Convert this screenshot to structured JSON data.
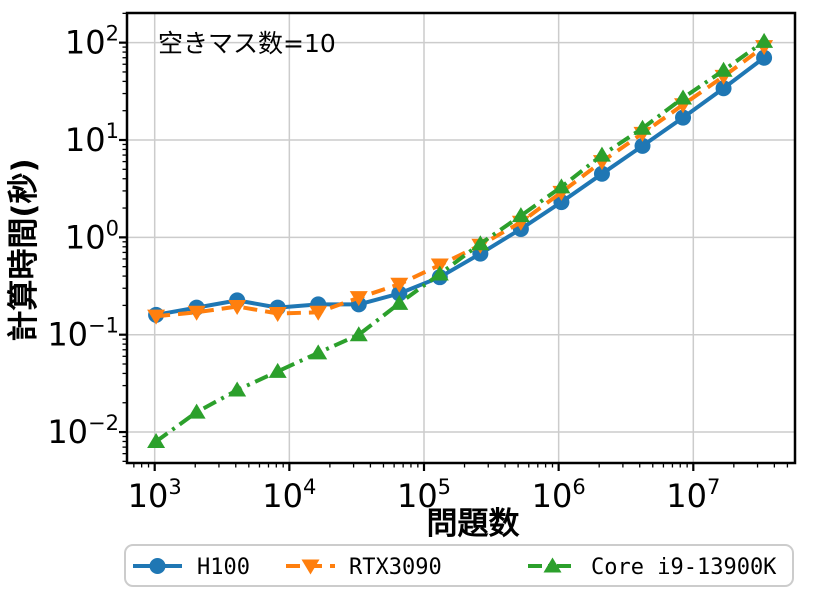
{
  "figure": {
    "background": "#ffffff",
    "annotation": "空きマス数=10"
  },
  "chart_data": {
    "type": "line",
    "title": "",
    "annotation": "空きマス数=10",
    "xlabel": "問題数",
    "ylabel": "計算時間(秒)",
    "x_scale": "log",
    "y_scale": "log",
    "grid": true,
    "legend_position": "bottom-outside",
    "xlim": [
      620,
      57000000
    ],
    "ylim": [
      0.0048,
      200
    ],
    "x_ticks": [
      1000,
      10000,
      100000,
      1000000,
      10000000
    ],
    "x_tick_exponents": [
      3,
      4,
      5,
      6,
      7
    ],
    "y_ticks": [
      100,
      10,
      1,
      0.1,
      0.01
    ],
    "y_tick_exponents": [
      2,
      1,
      0,
      -1,
      -2
    ],
    "colors": {
      "grid": "#cccccc",
      "axis": "#000000",
      "legend_border": "#cccccc"
    },
    "x": [
      1024,
      2048,
      4096,
      8192,
      16384,
      32768,
      65536,
      131072,
      262144,
      524288,
      1048576,
      2097152,
      4194304,
      8388608,
      16777216,
      33554432
    ],
    "series": [
      {
        "name": "H100",
        "color": "#1f77b4",
        "line_style": "solid",
        "marker": "circle",
        "values": [
          0.16,
          0.19,
          0.225,
          0.19,
          0.205,
          0.205,
          0.265,
          0.39,
          0.68,
          1.22,
          2.3,
          4.5,
          8.7,
          17,
          34,
          70
        ]
      },
      {
        "name": "RTX3090",
        "color": "#ff7f0e",
        "line_style": "dashed",
        "marker": "triangle-down",
        "values": [
          0.155,
          0.17,
          0.195,
          0.165,
          0.17,
          0.24,
          0.33,
          0.52,
          0.83,
          1.43,
          2.9,
          6.0,
          11.7,
          23,
          45,
          91
        ]
      },
      {
        "name": "Core i9-13900K",
        "color": "#2ca02c",
        "line_style": "dashdot",
        "marker": "triangle-up",
        "values": [
          0.008,
          0.016,
          0.027,
          0.042,
          0.065,
          0.1,
          0.21,
          0.42,
          0.86,
          1.67,
          3.3,
          7.0,
          13.2,
          27,
          52,
          103
        ]
      }
    ]
  }
}
